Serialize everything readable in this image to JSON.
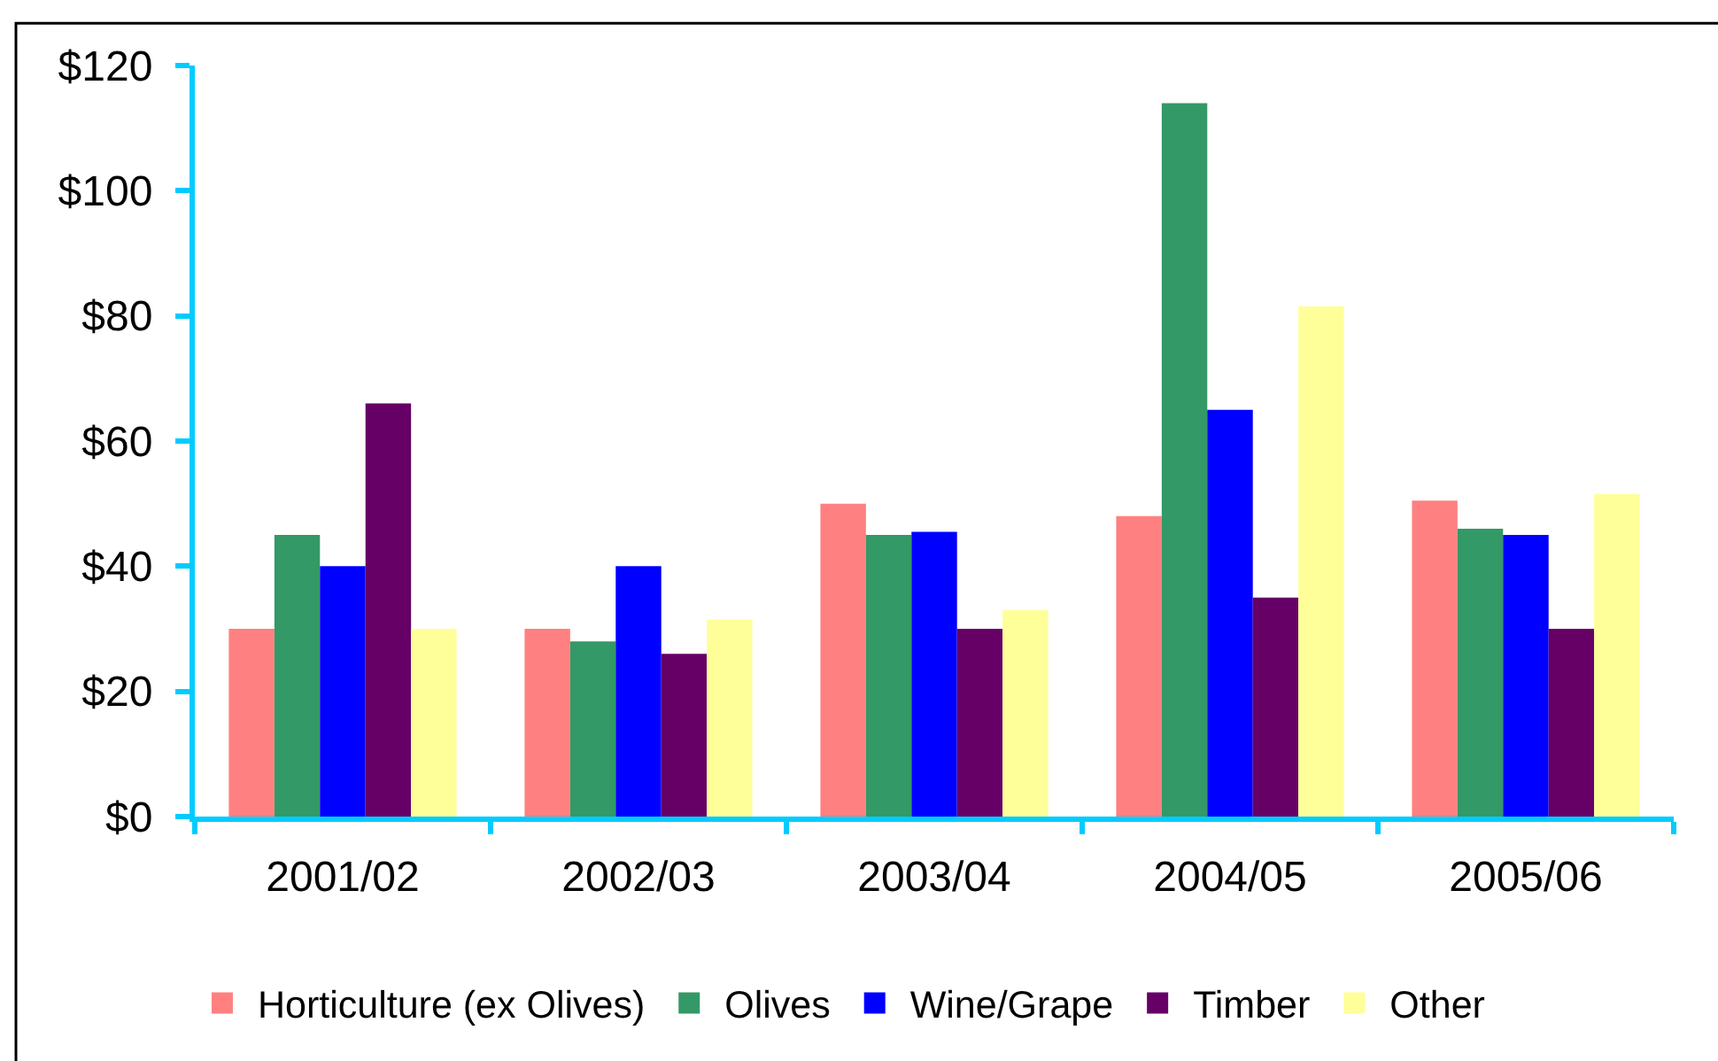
{
  "chart_data": {
    "type": "bar",
    "categories": [
      "2001/02",
      "2002/03",
      "2003/04",
      "2004/05",
      "2005/06"
    ],
    "series": [
      {
        "name": "Horticulture (ex Olives)",
        "color": "#ff8080",
        "values": [
          30,
          30,
          50,
          48,
          50.5
        ]
      },
      {
        "name": "Olives",
        "color": "#339966",
        "values": [
          45,
          28,
          45,
          114,
          46
        ]
      },
      {
        "name": "Wine/Grape",
        "color": "#0000ff",
        "values": [
          40,
          40,
          45.5,
          65,
          45
        ]
      },
      {
        "name": "Timber",
        "color": "#660066",
        "values": [
          66,
          26,
          30,
          35,
          30
        ]
      },
      {
        "name": "Other",
        "color": "#ffff99",
        "values": [
          30,
          31.5,
          33,
          81.5,
          51.5
        ]
      }
    ],
    "ylim": [
      0,
      120
    ],
    "yticks": [
      {
        "value": 0,
        "label": "$0"
      },
      {
        "value": 20,
        "label": "$20"
      },
      {
        "value": 40,
        "label": "$40"
      },
      {
        "value": 60,
        "label": "$60"
      },
      {
        "value": 80,
        "label": "$80"
      },
      {
        "value": 100,
        "label": "$100"
      },
      {
        "value": 120,
        "label": "$120"
      }
    ],
    "legend": "bottom"
  }
}
